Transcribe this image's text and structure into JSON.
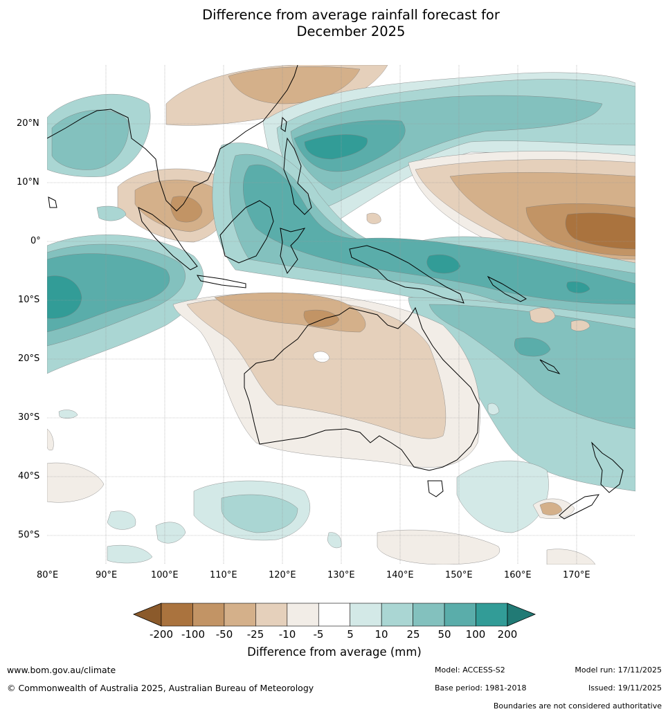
{
  "title": {
    "line1": "Difference from average rainfall forecast for",
    "line2": "December 2025"
  },
  "map": {
    "lat_labels": [
      "20°N",
      "10°N",
      "0°",
      "10°S",
      "20°S",
      "30°S",
      "40°S",
      "50°S"
    ],
    "lon_labels": [
      "80°E",
      "90°E",
      "100°E",
      "110°E",
      "120°E",
      "130°E",
      "140°E",
      "150°E",
      "160°E",
      "170°E"
    ],
    "colors": {
      "dry_very_strong": "#8b5a2b",
      "dry_strong": "#aa733e",
      "dry_mid": "#c29465",
      "dry_mod": "#d4b08a",
      "dry_light": "#e5d0bb",
      "dry_faint": "#f2ede7",
      "wet_faint": "#d3e9e7",
      "wet_light": "#aad6d3",
      "wet_mid": "#83c1be",
      "wet_strong": "#5aadaa",
      "wet_very_strong": "#329c97",
      "wet_extreme": "#217a75"
    }
  },
  "colorbar": {
    "title": "Difference from average (mm)",
    "ticks": [
      "-200",
      "-100",
      "-50",
      "-25",
      "-10",
      "-5",
      "5",
      "10",
      "25",
      "50",
      "100",
      "200"
    ],
    "colors": [
      "#aa733e",
      "#c29465",
      "#d4b08a",
      "#e5d0bb",
      "#f2ede7",
      "#ffffff",
      "#d3e9e7",
      "#aad6d3",
      "#83c1be",
      "#5aadaa",
      "#329c97"
    ],
    "low_extension_color": "#8b5a2b",
    "high_extension_color": "#217a75"
  },
  "footer": {
    "url": "www.bom.gov.au/climate",
    "copyright": "© Commonwealth of Australia 2025, Australian Bureau of Meteorology",
    "model": "Model: ACCESS-S2",
    "base_period": "Base period: 1981-2018",
    "model_run": "Model run: 17/11/2025",
    "issued": "Issued: 19/11/2025",
    "disclaimer": "Boundaries are not considered authoritative"
  }
}
